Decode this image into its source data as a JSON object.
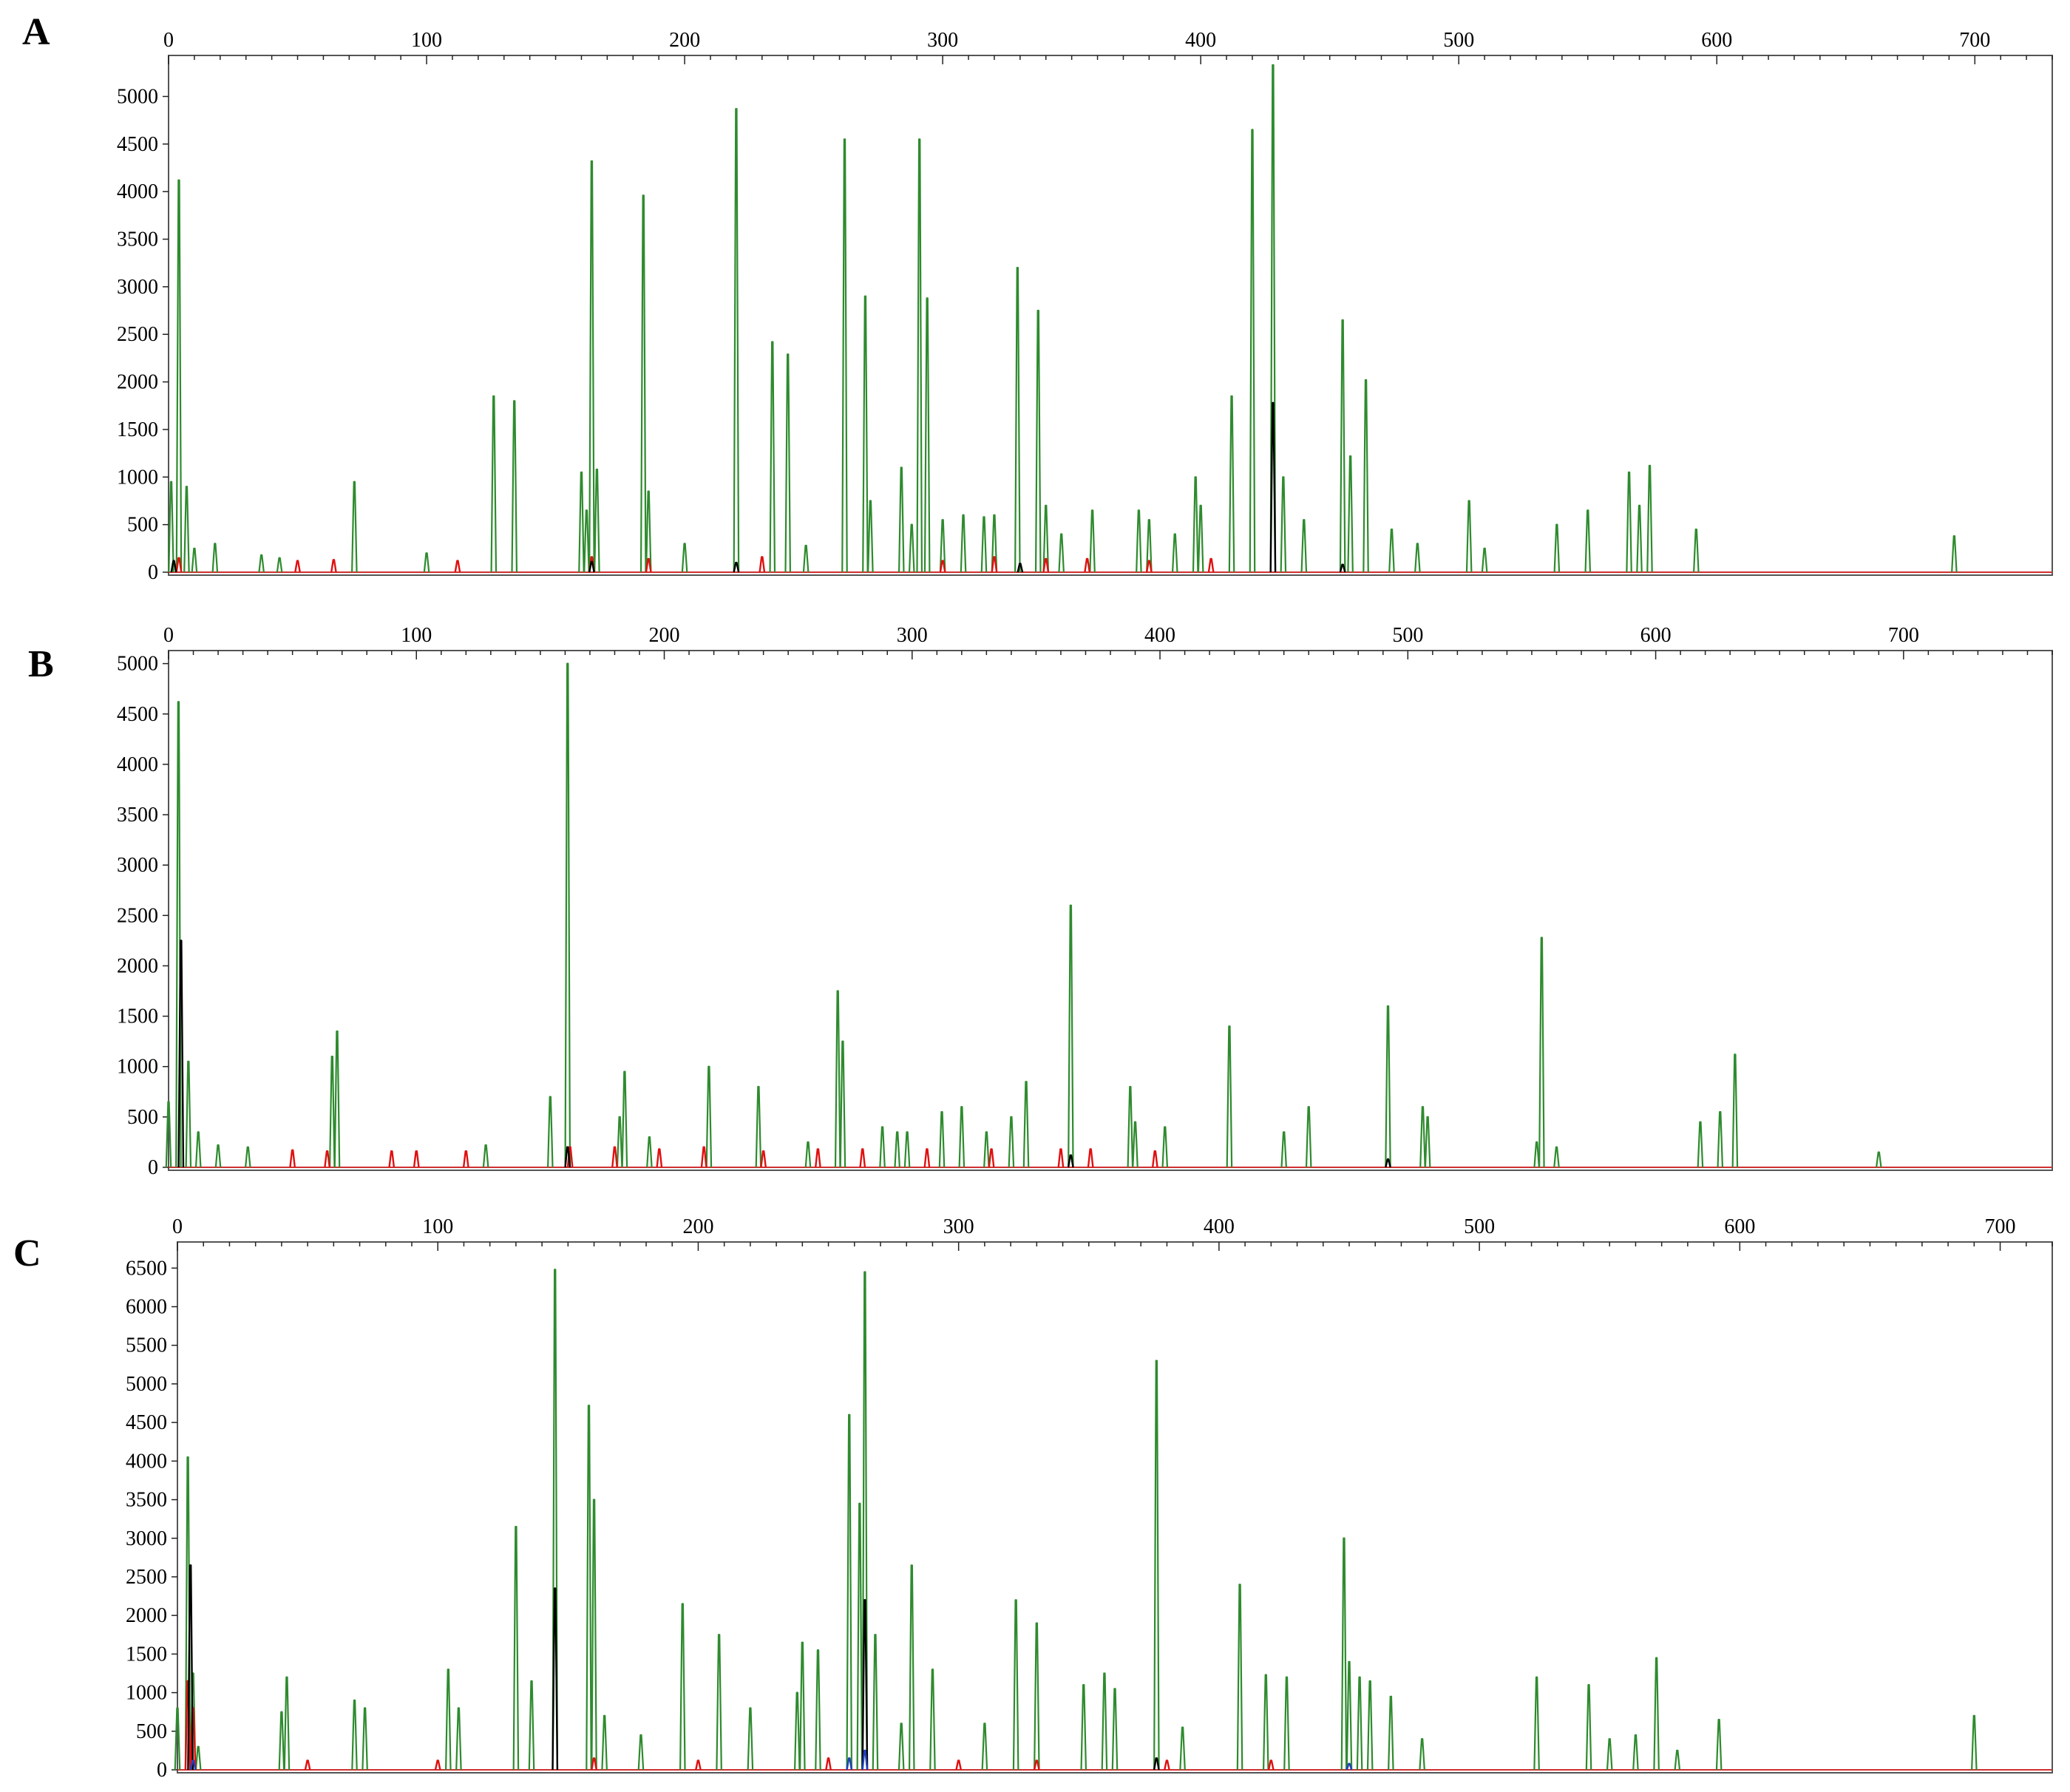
{
  "chart_data": [
    {
      "type": "line",
      "panel": "A",
      "xlim": [
        0,
        730
      ],
      "ylim": [
        0,
        5400
      ],
      "x_ticks": [
        0,
        100,
        200,
        300,
        400,
        500,
        600,
        700
      ],
      "y_ticks": [
        0,
        500,
        1000,
        1500,
        2000,
        2500,
        3000,
        3500,
        4000,
        4500,
        5000
      ],
      "grid": false,
      "series": [
        {
          "color": "#2e8b2e",
          "peaks": [
            [
              1,
              950
            ],
            [
              4,
              4120
            ],
            [
              7,
              900
            ],
            [
              10,
              250
            ],
            [
              18,
              300
            ],
            [
              36,
              180
            ],
            [
              43,
              150
            ],
            [
              72,
              950
            ],
            [
              100,
              200
            ],
            [
              126,
              1850
            ],
            [
              134,
              1800
            ],
            [
              160,
              1050
            ],
            [
              162,
              650
            ],
            [
              164,
              4320
            ],
            [
              166,
              1080
            ],
            [
              184,
              3960
            ],
            [
              186,
              850
            ],
            [
              200,
              300
            ],
            [
              220,
              4870
            ],
            [
              234,
              2420
            ],
            [
              240,
              2290
            ],
            [
              247,
              280
            ],
            [
              262,
              4550
            ],
            [
              270,
              2900
            ],
            [
              272,
              750
            ],
            [
              284,
              1100
            ],
            [
              288,
              500
            ],
            [
              291,
              4550
            ],
            [
              294,
              2880
            ],
            [
              300,
              550
            ],
            [
              308,
              600
            ],
            [
              316,
              580
            ],
            [
              320,
              600
            ],
            [
              329,
              3200
            ],
            [
              337,
              2750
            ],
            [
              340,
              700
            ],
            [
              346,
              400
            ],
            [
              358,
              650
            ],
            [
              376,
              650
            ],
            [
              380,
              550
            ],
            [
              390,
              400
            ],
            [
              398,
              1000
            ],
            [
              400,
              700
            ],
            [
              412,
              1850
            ],
            [
              420,
              4650
            ],
            [
              428,
              5330
            ],
            [
              432,
              1000
            ],
            [
              440,
              550
            ],
            [
              455,
              2650
            ],
            [
              458,
              1220
            ],
            [
              464,
              2020
            ],
            [
              474,
              450
            ],
            [
              484,
              300
            ],
            [
              504,
              750
            ],
            [
              510,
              250
            ],
            [
              538,
              500
            ],
            [
              550,
              650
            ],
            [
              566,
              1050
            ],
            [
              570,
              700
            ],
            [
              574,
              1120
            ],
            [
              592,
              450
            ],
            [
              692,
              380
            ]
          ]
        },
        {
          "color": "#e01010",
          "peaks": [
            [
              4,
              150
            ],
            [
              50,
              120
            ],
            [
              64,
              130
            ],
            [
              112,
              120
            ],
            [
              164,
              160
            ],
            [
              186,
              140
            ],
            [
              230,
              160
            ],
            [
              300,
              120
            ],
            [
              320,
              160
            ],
            [
              340,
              140
            ],
            [
              356,
              140
            ],
            [
              380,
              120
            ],
            [
              404,
              140
            ]
          ]
        },
        {
          "color": "#000000",
          "peaks": [
            [
              2,
              120
            ],
            [
              164,
              110
            ],
            [
              220,
              100
            ],
            [
              330,
              90
            ],
            [
              428,
              1780
            ],
            [
              455,
              80
            ]
          ]
        }
      ]
    },
    {
      "type": "line",
      "panel": "B",
      "xlim": [
        0,
        760
      ],
      "ylim": [
        0,
        5100
      ],
      "x_ticks": [
        0,
        100,
        200,
        300,
        400,
        500,
        600,
        700
      ],
      "y_ticks": [
        0,
        500,
        1000,
        1500,
        2000,
        2500,
        3000,
        3500,
        4000,
        4500,
        5000
      ],
      "grid": false,
      "series": [
        {
          "color": "#2e8b2e",
          "peaks": [
            [
              0,
              650
            ],
            [
              4,
              4620
            ],
            [
              8,
              1050
            ],
            [
              12,
              350
            ],
            [
              20,
              220
            ],
            [
              32,
              200
            ],
            [
              66,
              1100
            ],
            [
              68,
              1350
            ],
            [
              128,
              220
            ],
            [
              154,
              700
            ],
            [
              161,
              5000
            ],
            [
              182,
              500
            ],
            [
              184,
              950
            ],
            [
              194,
              300
            ],
            [
              218,
              1000
            ],
            [
              238,
              800
            ],
            [
              258,
              250
            ],
            [
              270,
              1750
            ],
            [
              272,
              1250
            ],
            [
              288,
              400
            ],
            [
              294,
              350
            ],
            [
              298,
              350
            ],
            [
              312,
              550
            ],
            [
              320,
              600
            ],
            [
              330,
              350
            ],
            [
              340,
              500
            ],
            [
              346,
              850
            ],
            [
              364,
              2600
            ],
            [
              388,
              800
            ],
            [
              390,
              450
            ],
            [
              402,
              400
            ],
            [
              428,
              1400
            ],
            [
              450,
              350
            ],
            [
              460,
              600
            ],
            [
              492,
              1600
            ],
            [
              506,
              600
            ],
            [
              508,
              500
            ],
            [
              552,
              250
            ],
            [
              554,
              2280
            ],
            [
              560,
              200
            ],
            [
              618,
              450
            ],
            [
              626,
              550
            ],
            [
              632,
              1120
            ],
            [
              690,
              150
            ]
          ]
        },
        {
          "color": "#e01010",
          "peaks": [
            [
              50,
              170
            ],
            [
              64,
              160
            ],
            [
              90,
              160
            ],
            [
              100,
              160
            ],
            [
              120,
              160
            ],
            [
              162,
              200
            ],
            [
              180,
              200
            ],
            [
              198,
              180
            ],
            [
              216,
              200
            ],
            [
              240,
              160
            ],
            [
              262,
              180
            ],
            [
              280,
              180
            ],
            [
              306,
              180
            ],
            [
              332,
              180
            ],
            [
              360,
              180
            ],
            [
              372,
              180
            ],
            [
              398,
              160
            ]
          ]
        },
        {
          "color": "#000000",
          "peaks": [
            [
              5,
              2250
            ],
            [
              161,
              200
            ],
            [
              364,
              120
            ],
            [
              492,
              80
            ]
          ]
        }
      ]
    },
    {
      "type": "line",
      "panel": "C",
      "xlim": [
        0,
        720
      ],
      "ylim": [
        0,
        6800
      ],
      "x_ticks": [
        0,
        100,
        200,
        300,
        400,
        500,
        600,
        700
      ],
      "y_ticks": [
        0,
        500,
        1000,
        1500,
        2000,
        2500,
        3000,
        3500,
        4000,
        4500,
        5000,
        5500,
        6000,
        6500
      ],
      "grid": false,
      "series": [
        {
          "color": "#2e8b2e",
          "peaks": [
            [
              0,
              800
            ],
            [
              4,
              4050
            ],
            [
              6,
              1250
            ],
            [
              8,
              300
            ],
            [
              40,
              750
            ],
            [
              42,
              1200
            ],
            [
              68,
              900
            ],
            [
              72,
              800
            ],
            [
              104,
              1300
            ],
            [
              108,
              800
            ],
            [
              130,
              3150
            ],
            [
              136,
              1150
            ],
            [
              145,
              6480
            ],
            [
              158,
              4720
            ],
            [
              160,
              3500
            ],
            [
              164,
              700
            ],
            [
              178,
              450
            ],
            [
              194,
              2150
            ],
            [
              208,
              1750
            ],
            [
              220,
              800
            ],
            [
              238,
              1000
            ],
            [
              240,
              1650
            ],
            [
              246,
              1550
            ],
            [
              258,
              4600
            ],
            [
              262,
              3450
            ],
            [
              264,
              6450
            ],
            [
              268,
              1750
            ],
            [
              278,
              600
            ],
            [
              282,
              2650
            ],
            [
              290,
              1300
            ],
            [
              310,
              600
            ],
            [
              322,
              2200
            ],
            [
              330,
              1900
            ],
            [
              348,
              1100
            ],
            [
              356,
              1250
            ],
            [
              360,
              1050
            ],
            [
              376,
              5300
            ],
            [
              386,
              550
            ],
            [
              408,
              2400
            ],
            [
              418,
              1230
            ],
            [
              426,
              1200
            ],
            [
              448,
              3000
            ],
            [
              450,
              1400
            ],
            [
              454,
              1200
            ],
            [
              458,
              1150
            ],
            [
              466,
              950
            ],
            [
              478,
              400
            ],
            [
              522,
              1200
            ],
            [
              542,
              1100
            ],
            [
              550,
              400
            ],
            [
              560,
              450
            ],
            [
              568,
              1450
            ],
            [
              576,
              250
            ],
            [
              592,
              650
            ],
            [
              690,
              700
            ]
          ]
        },
        {
          "color": "#e01010",
          "peaks": [
            [
              4,
              1150
            ],
            [
              6,
              800
            ],
            [
              50,
              120
            ],
            [
              100,
              120
            ],
            [
              160,
              150
            ],
            [
              200,
              120
            ],
            [
              250,
              150
            ],
            [
              300,
              120
            ],
            [
              330,
              120
            ],
            [
              380,
              120
            ],
            [
              420,
              120
            ]
          ]
        },
        {
          "color": "#000000",
          "peaks": [
            [
              5,
              2650
            ],
            [
              145,
              2350
            ],
            [
              264,
              2200
            ],
            [
              376,
              150
            ]
          ]
        },
        {
          "color": "#1f3fbf",
          "peaks": [
            [
              6,
              120
            ],
            [
              258,
              150
            ],
            [
              264,
              250
            ],
            [
              450,
              80
            ]
          ]
        }
      ]
    }
  ]
}
